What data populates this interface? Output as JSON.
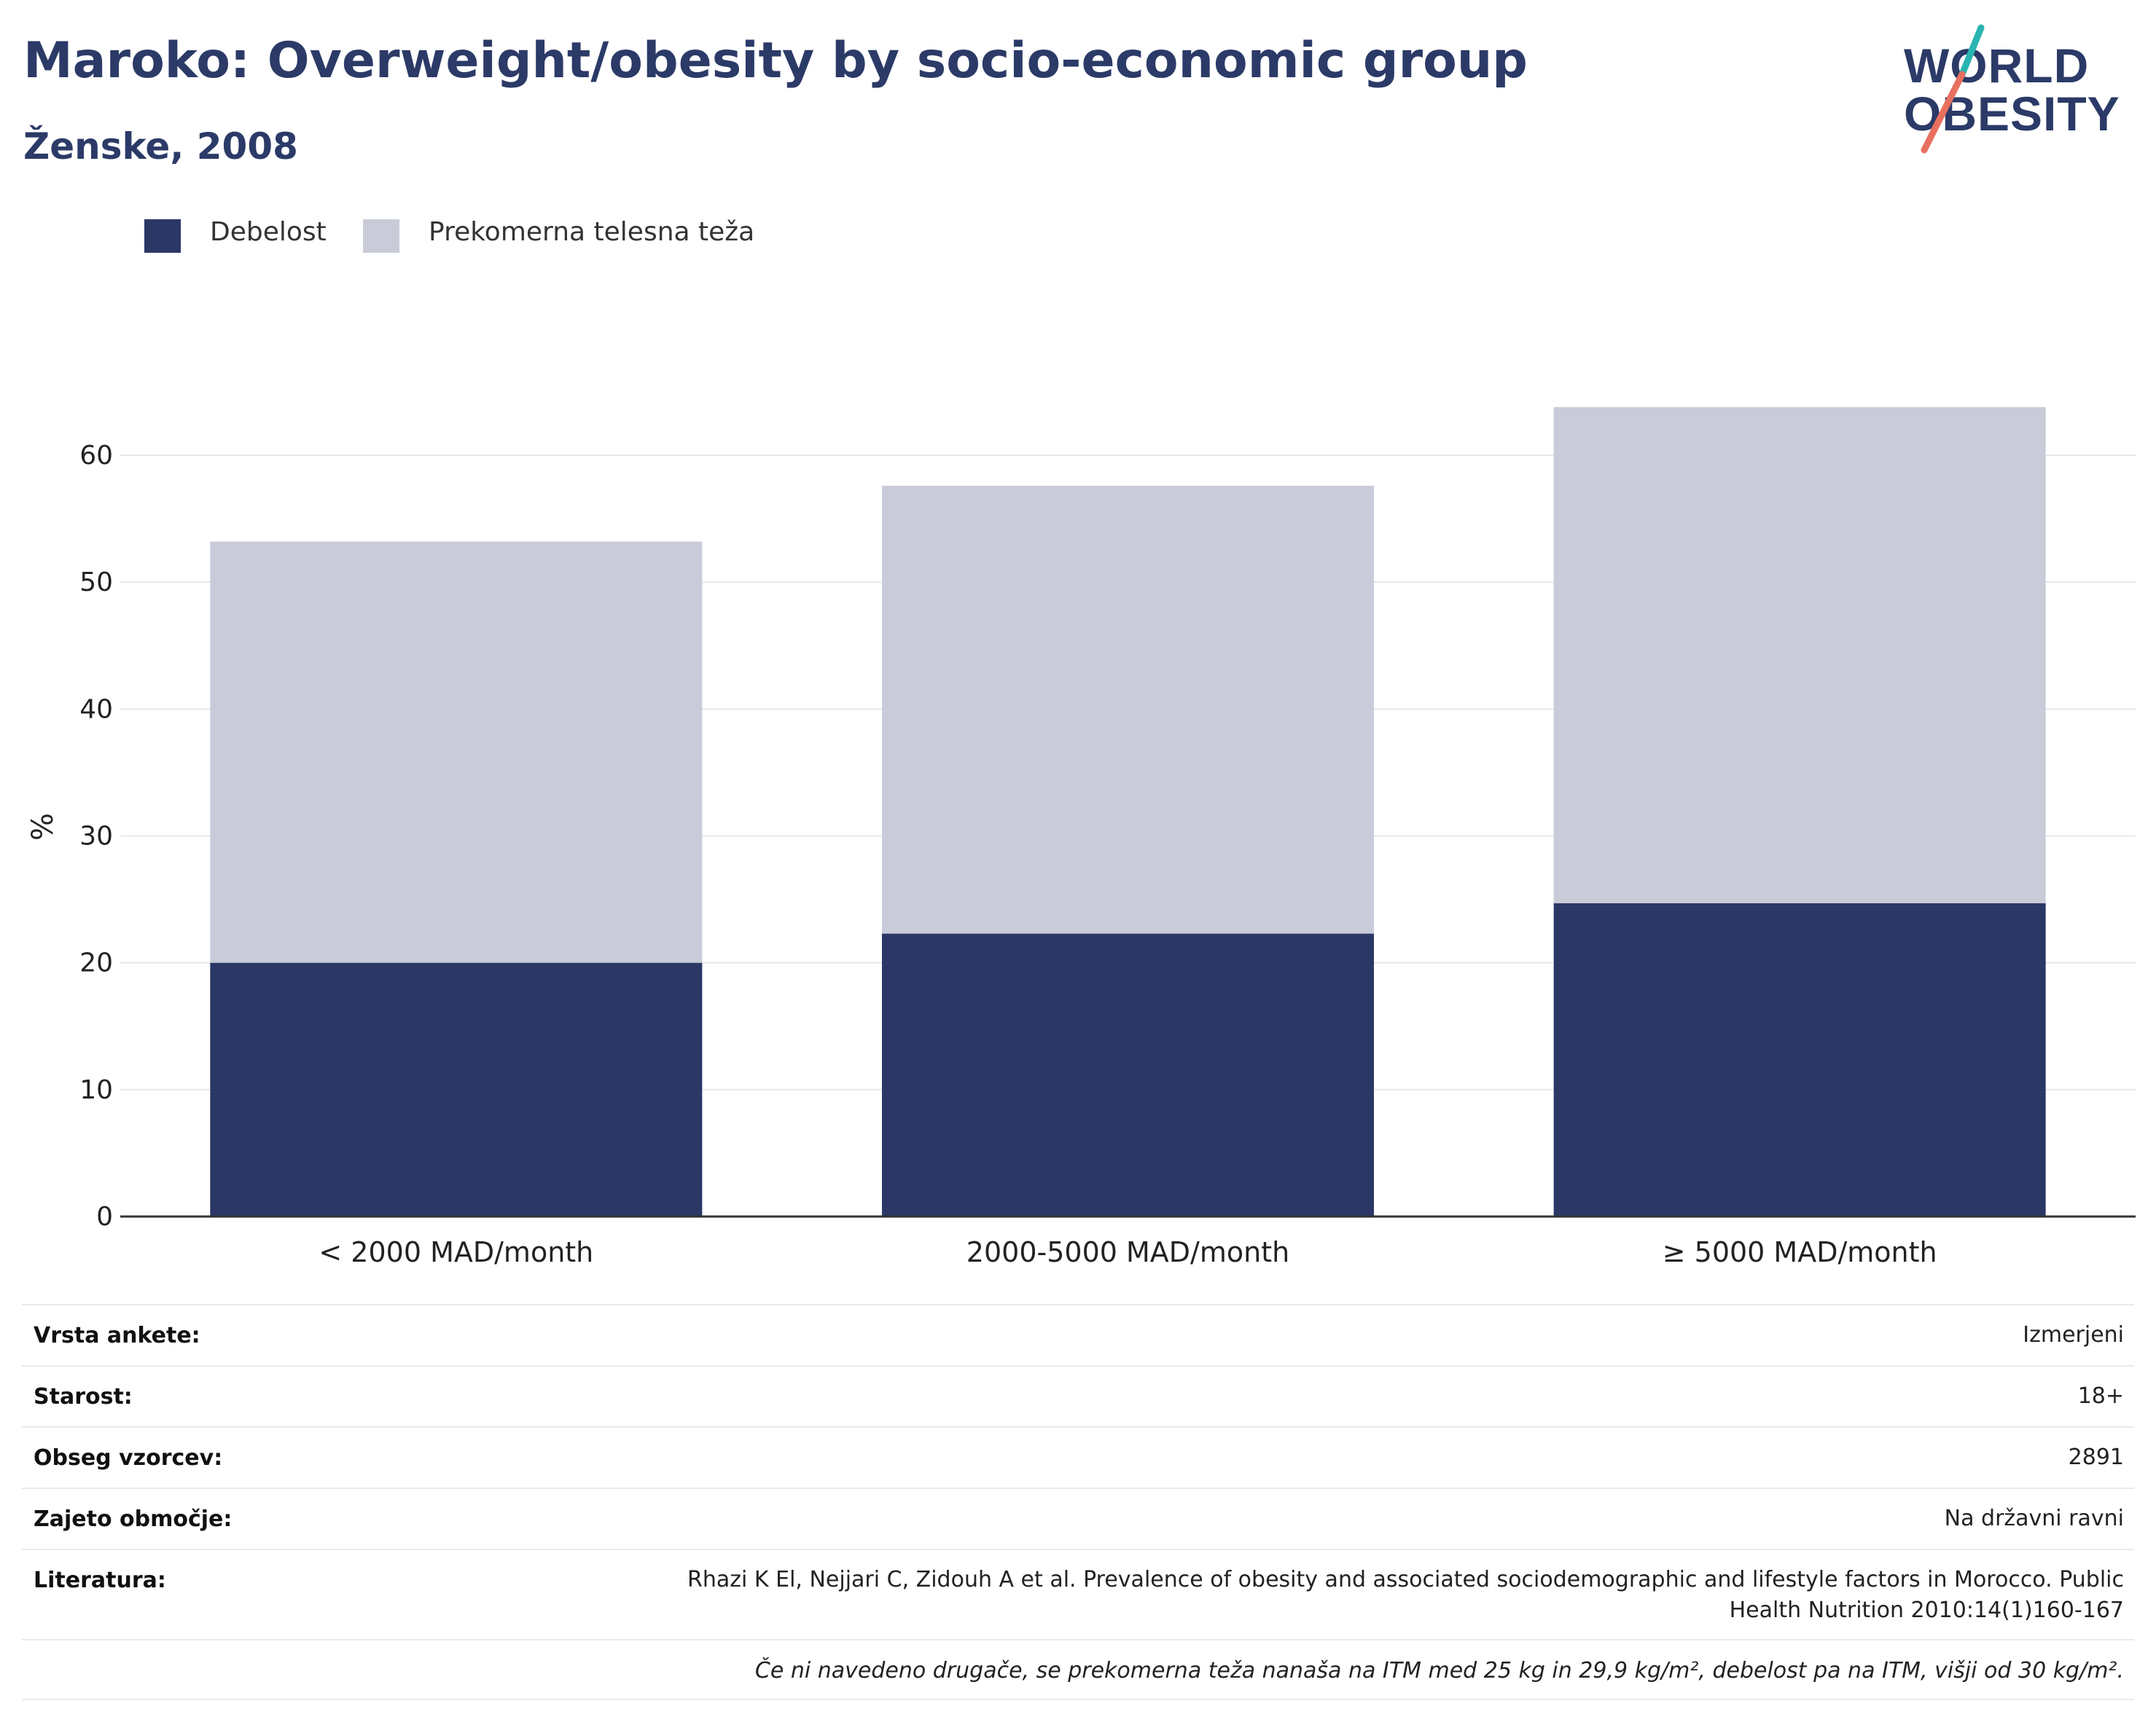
{
  "header": {
    "title": "Maroko: Overweight/obesity by socio-economic group",
    "subtitle": "Ženske, 2008"
  },
  "logo": {
    "line1": "WORLD",
    "line2": "OBESITY",
    "colors": {
      "text": "#2b3a67",
      "slash_top": "#2ab5b0",
      "slash_bottom": "#e8705f"
    }
  },
  "legend": [
    {
      "label": "Debelost",
      "color": "#2b3765"
    },
    {
      "label": "Prekomerna telesna teža",
      "color": "#c9ccd8"
    }
  ],
  "chart_data": {
    "type": "bar",
    "stacked": true,
    "categories": [
      "< 2000 MAD/month",
      "2000-5000 MAD/month",
      "≥ 5000 MAD/month"
    ],
    "series": [
      {
        "name": "Debelost",
        "color": "#2b3765",
        "values": [
          20.0,
          22.3,
          24.7
        ]
      },
      {
        "name": "Prekomerna telesna teža",
        "color": "#c9ccd8",
        "values": [
          33.2,
          35.3,
          39.1
        ]
      }
    ],
    "ylabel": "%",
    "ylim": [
      0,
      70
    ],
    "yticks": [
      0,
      10,
      20,
      30,
      40,
      50,
      60
    ],
    "grid": true,
    "legend_position": "top-left"
  },
  "info": {
    "rows": [
      {
        "label": "Vrsta ankete:",
        "value": "Izmerjeni"
      },
      {
        "label": "Starost:",
        "value": "18+"
      },
      {
        "label": "Obseg vzorcev:",
        "value": "2891"
      },
      {
        "label": "Zajeto območje:",
        "value": "Na državni ravni"
      },
      {
        "label": "Literatura:",
        "value": "Rhazi K El, Nejjari C, Zidouh A et al. Prevalence of obesity and associated sociodemographic and lifestyle factors in Morocco. Public Health Nutrition 2010:14(1)160-167"
      }
    ],
    "note": "Če ni navedeno drugače, se prekomerna teža nanaša na ITM med 25 kg in 29,9 kg/m², debelost pa na ITM, višji od 30 kg/m²."
  }
}
